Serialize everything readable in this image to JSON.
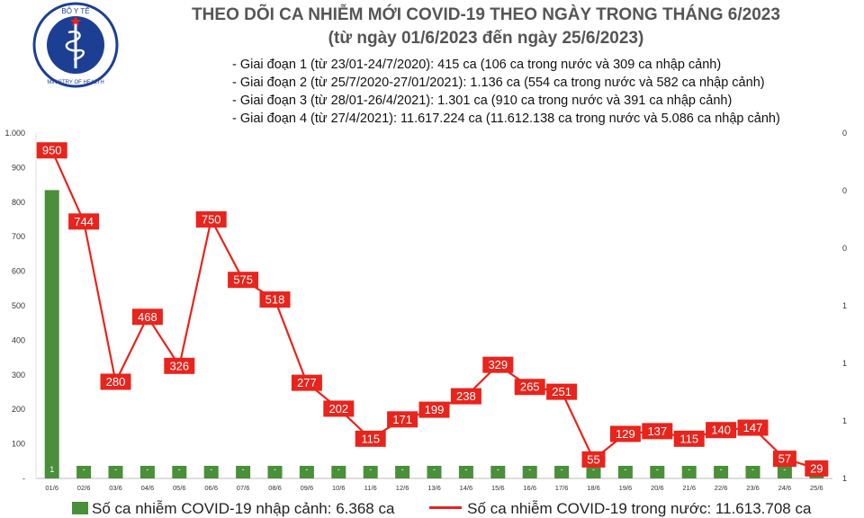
{
  "header": {
    "logo_top_text": "BỘ Y TẾ",
    "logo_bottom_text": "MINISTRY OF HEALTH",
    "title_line1": "THEO DÕI CA NHIỄM MỚI COVID-19 THEO NGÀY TRONG THÁNG 6/2023",
    "title_line2": "(từ ngày 01/6/2023 đến ngày 25/6/2023)",
    "phases": [
      "- Giai đoạn 1 (từ 23/01-24/7/2020): 415 ca (106 ca trong nước và 309 ca nhập cảnh)",
      "- Giai đoạn 2 (từ 25/7/2020-27/01/2021): 1.136 ca (554 ca trong nước và 582 ca nhập cảnh)",
      "- Giai đoạn 3 (từ 28/01-26/4/2021): 1.301 ca (910 ca trong nước và 391 ca nhập cảnh)",
      "- Giai đoạn 4 (từ 27/4/2021): 11.617.224 ca (11.612.138 ca trong nước và 5.086 ca nhập cảnh)"
    ]
  },
  "colors": {
    "bar": "#4a8f3a",
    "line": "#e8241c",
    "label_box": "#e8241c"
  },
  "chart_data": {
    "type": "bar+line",
    "categories": [
      "01/6",
      "02/6",
      "03/6",
      "04/6",
      "05/6",
      "06/6",
      "07/6",
      "08/6",
      "09/6",
      "10/6",
      "11/6",
      "12/6",
      "13/6",
      "14/6",
      "15/6",
      "16/6",
      "17/6",
      "18/6",
      "19/6",
      "20/6",
      "21/6",
      "22/6",
      "23/6",
      "24/6",
      "25/6"
    ],
    "left_ticks": [
      "-",
      "100",
      "200",
      "300",
      "400",
      "500",
      "600",
      "700",
      "800",
      "900",
      "1.000"
    ],
    "left_ylim": [
      0,
      1000
    ],
    "right_ticks": [
      "0",
      "0",
      "0",
      "1",
      "1",
      "1",
      "1"
    ],
    "series": [
      {
        "name": "Số ca nhiễm COVID-19 nhập cảnh: 6.368 ca",
        "kind": "bar",
        "axis": "right",
        "values": [
          1,
          0,
          0,
          0,
          0,
          0,
          0,
          0,
          0,
          0,
          0,
          0,
          0,
          0,
          0,
          0,
          0,
          0,
          0,
          0,
          0,
          0,
          0,
          0,
          0
        ],
        "labels": [
          "1",
          "-",
          "-",
          "-",
          "-",
          "-",
          "-",
          "-",
          "-",
          "-",
          "-",
          "-",
          "-",
          "-",
          "-",
          "-",
          "-",
          "-",
          "-",
          "-",
          "-",
          "-",
          "-",
          "-",
          "-"
        ]
      },
      {
        "name": "Số ca nhiễm COVID-19 trong nước: 11.613.708 ca",
        "kind": "line",
        "axis": "left",
        "values": [
          950,
          744,
          280,
          468,
          326,
          750,
          575,
          518,
          277,
          202,
          115,
          171,
          199,
          238,
          329,
          265,
          251,
          55,
          129,
          137,
          115,
          140,
          147,
          57,
          29
        ],
        "labels": [
          "950",
          "744",
          "280",
          "468",
          "326",
          "750",
          "575",
          "518",
          "277",
          "202",
          "115",
          "171",
          "199",
          "238",
          "329",
          "265",
          "251",
          "55",
          "129",
          "137",
          "115",
          "140",
          "147",
          "57",
          "29"
        ]
      }
    ],
    "legend_position": "bottom"
  }
}
